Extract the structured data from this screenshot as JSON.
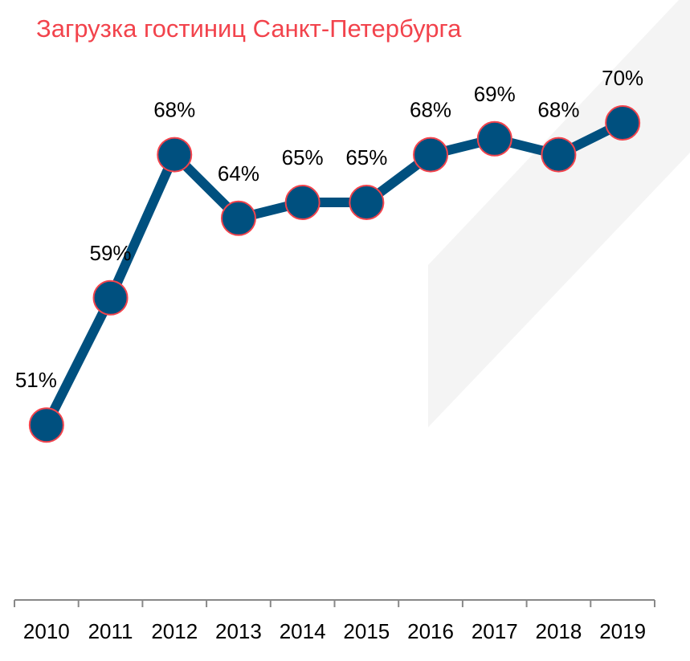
{
  "chart_data": {
    "type": "line",
    "title": "Загрузка гостиниц Санкт-Петербурга",
    "xlabel": "",
    "ylabel": "",
    "categories": [
      "2010",
      "2011",
      "2012",
      "2013",
      "2014",
      "2015",
      "2016",
      "2017",
      "2018",
      "2019"
    ],
    "values": [
      51,
      59,
      68,
      64,
      65,
      65,
      68,
      69,
      68,
      70
    ],
    "data_labels": [
      "51%",
      "59%",
      "68%",
      "64%",
      "65%",
      "65%",
      "68%",
      "69%",
      "68%",
      "70%"
    ],
    "ylim": [
      40,
      75
    ],
    "grid": false,
    "legend": "none",
    "colors": {
      "line": "#00507f",
      "marker_fill": "#00507f",
      "marker_edge": "#f2434c",
      "title": "#f2434c",
      "axis": "#888888"
    }
  }
}
